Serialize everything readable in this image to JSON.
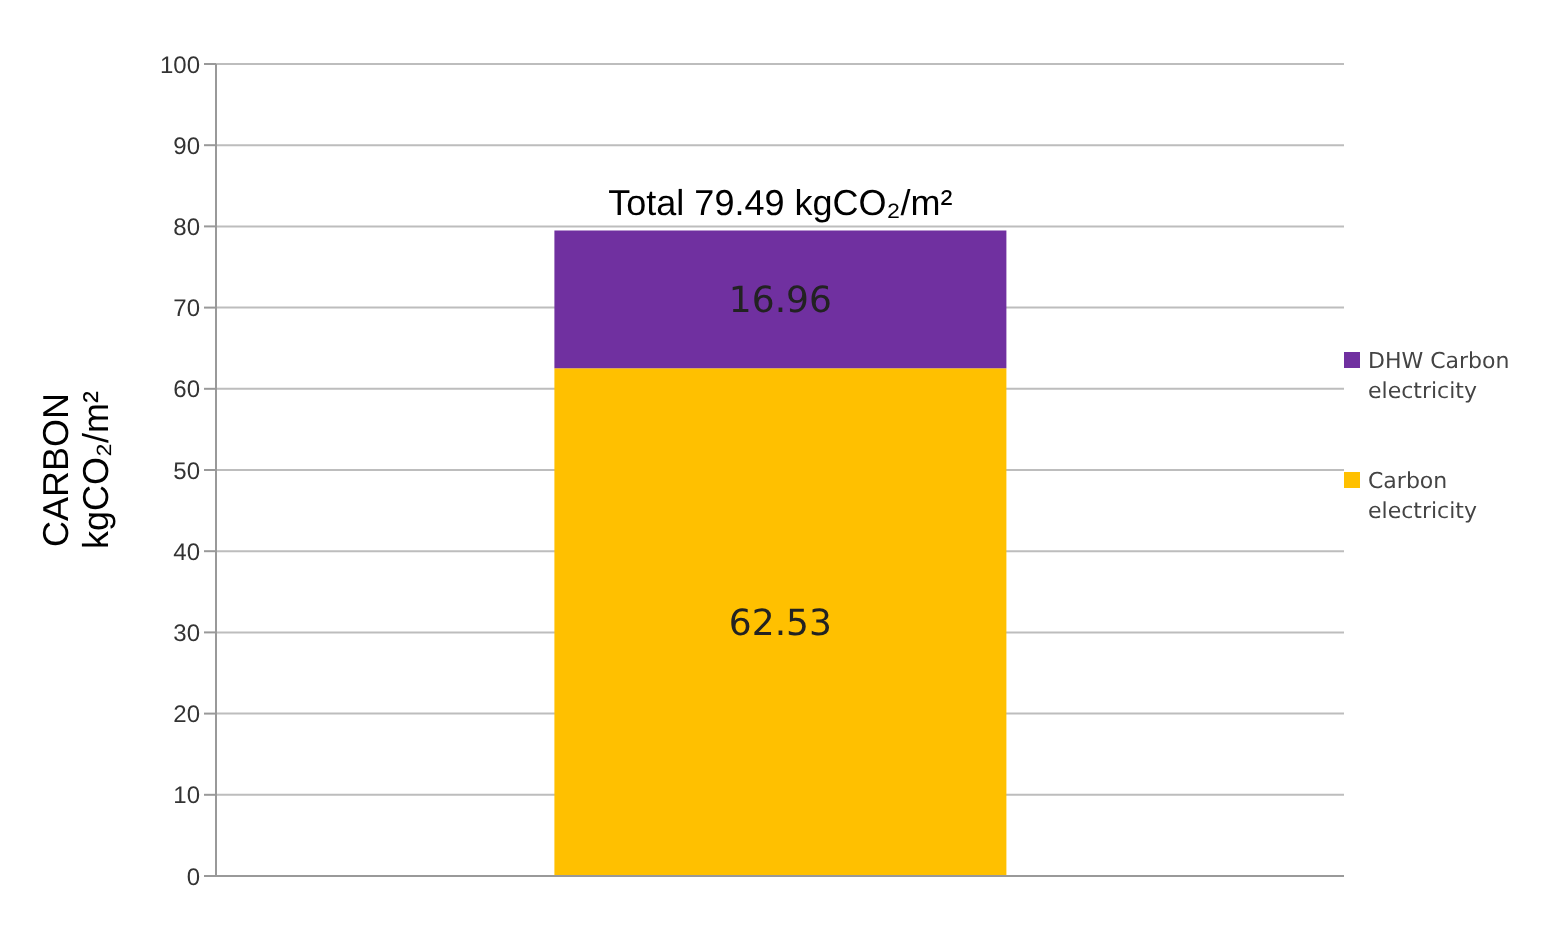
{
  "chart_data": {
    "type": "bar",
    "stacked": true,
    "categories": [
      null
    ],
    "series": [
      {
        "name": "Carbon electricity",
        "color": "#ffc000",
        "values": [
          62.53
        ]
      },
      {
        "name": "DHW Carbon electricity",
        "color": "#7030a0",
        "values": [
          16.96
        ]
      }
    ],
    "totals": [
      "Total 79.49 kgCO₂/m²"
    ],
    "ylabel": "CARBON kgCO₂/m²",
    "ylim": [
      0,
      100
    ],
    "yticks": [
      0,
      10,
      20,
      30,
      40,
      50,
      60,
      70,
      80,
      90,
      100
    ],
    "grid": "y",
    "legend": "right",
    "data_labels": true
  }
}
